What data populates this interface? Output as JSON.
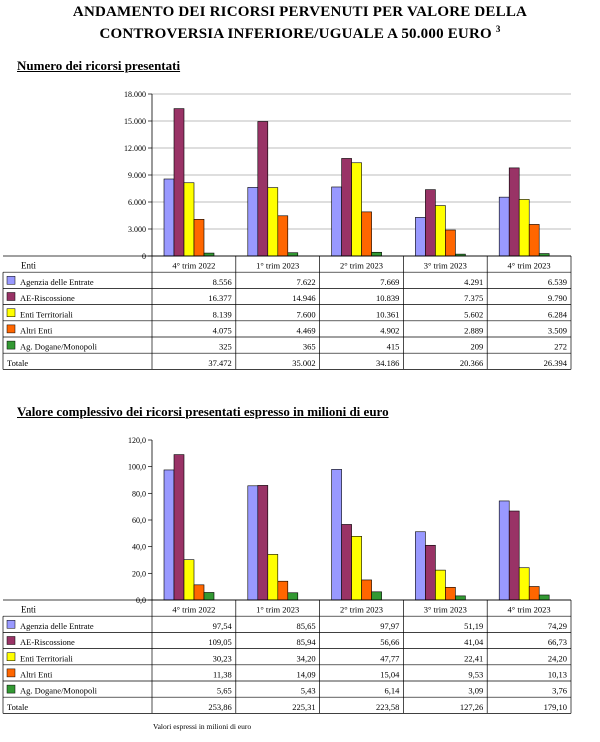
{
  "title_line1": "ANDAMENTO DEI RICORSI PERVENUTI PER VALORE DELLA",
  "title_line2": "CONTROVERSIA INFERIORE/UGUALE A 50.000 EURO",
  "title_note": "3",
  "footnote": "Valori espressi in milioni di euro",
  "colors": {
    "Agenzia delle Entrate": "#9999ff",
    "AE-Riscossione": "#993366",
    "Enti Territoriali": "#ffff00",
    "Altri Enti": "#ff6600",
    "Ag. Dogane/Monopoli": "#339933"
  },
  "chart_data": [
    {
      "type": "bar",
      "title": "Numero dei ricorsi presentati",
      "table_header": "Enti",
      "total_label": "Totale",
      "categories": [
        "4° trim 2022",
        "1° trim 2023",
        "2° trim 2023",
        "3° trim 2023",
        "4° trim 2023"
      ],
      "ylim": [
        0,
        18000
      ],
      "yticks": [
        0,
        3000,
        6000,
        9000,
        12000,
        15000,
        18000
      ],
      "ytick_labels": [
        "0",
        "3.000",
        "6.000",
        "9.000",
        "12.000",
        "15.000",
        "18.000"
      ],
      "grid": true,
      "series": [
        {
          "name": "Agenzia delle Entrate",
          "values": [
            8556,
            7622,
            7669,
            4291,
            6539
          ],
          "labels": [
            "8.556",
            "7.622",
            "7.669",
            "4.291",
            "6.539"
          ]
        },
        {
          "name": "AE-Riscossione",
          "values": [
            16377,
            14946,
            10839,
            7375,
            9790
          ],
          "labels": [
            "16.377",
            "14.946",
            "10.839",
            "7.375",
            "9.790"
          ]
        },
        {
          "name": "Enti Territoriali",
          "values": [
            8139,
            7600,
            10361,
            5602,
            6284
          ],
          "labels": [
            "8.139",
            "7.600",
            "10.361",
            "5.602",
            "6.284"
          ]
        },
        {
          "name": "Altri Enti",
          "values": [
            4075,
            4469,
            4902,
            2889,
            3509
          ],
          "labels": [
            "4.075",
            "4.469",
            "4.902",
            "2.889",
            "3.509"
          ]
        },
        {
          "name": "Ag. Dogane/Monopoli",
          "values": [
            325,
            365,
            415,
            209,
            272
          ],
          "labels": [
            "325",
            "365",
            "415",
            "209",
            "272"
          ]
        }
      ],
      "totals": [
        "37.472",
        "35.002",
        "34.186",
        "20.366",
        "26.394"
      ]
    },
    {
      "type": "bar",
      "title": "Valore complessivo dei ricorsi presentati espresso in milioni di euro",
      "table_header": "Enti",
      "total_label": "Totale",
      "categories": [
        "4° trim 2022",
        "1° trim 2023",
        "2° trim 2023",
        "3° trim 2023",
        "4° trim 2023"
      ],
      "ylim": [
        0,
        120
      ],
      "yticks": [
        0,
        20,
        40,
        60,
        80,
        100,
        120
      ],
      "ytick_labels": [
        "0,0",
        "20,0",
        "40,0",
        "60,0",
        "80,0",
        "100,0",
        "120,0"
      ],
      "grid": false,
      "series": [
        {
          "name": "Agenzia delle Entrate",
          "values": [
            97.54,
            85.65,
            97.97,
            51.19,
            74.29
          ],
          "labels": [
            "97,54",
            "85,65",
            "97,97",
            "51,19",
            "74,29"
          ]
        },
        {
          "name": "AE-Riscossione",
          "values": [
            109.05,
            85.94,
            56.66,
            41.04,
            66.73
          ],
          "labels": [
            "109,05",
            "85,94",
            "56,66",
            "41,04",
            "66,73"
          ]
        },
        {
          "name": "Enti Territoriali",
          "values": [
            30.23,
            34.2,
            47.77,
            22.41,
            24.2
          ],
          "labels": [
            "30,23",
            "34,20",
            "47,77",
            "22,41",
            "24,20"
          ]
        },
        {
          "name": "Altri Enti",
          "values": [
            11.38,
            14.09,
            15.04,
            9.53,
            10.13
          ],
          "labels": [
            "11,38",
            "14,09",
            "15,04",
            "9,53",
            "10,13"
          ]
        },
        {
          "name": "Ag. Dogane/Monopoli",
          "values": [
            5.65,
            5.43,
            6.14,
            3.09,
            3.76
          ],
          "labels": [
            "5,65",
            "5,43",
            "6,14",
            "3,09",
            "3,76"
          ]
        }
      ],
      "totals": [
        "253,86",
        "225,31",
        "223,58",
        "127,26",
        "179,10"
      ]
    }
  ]
}
